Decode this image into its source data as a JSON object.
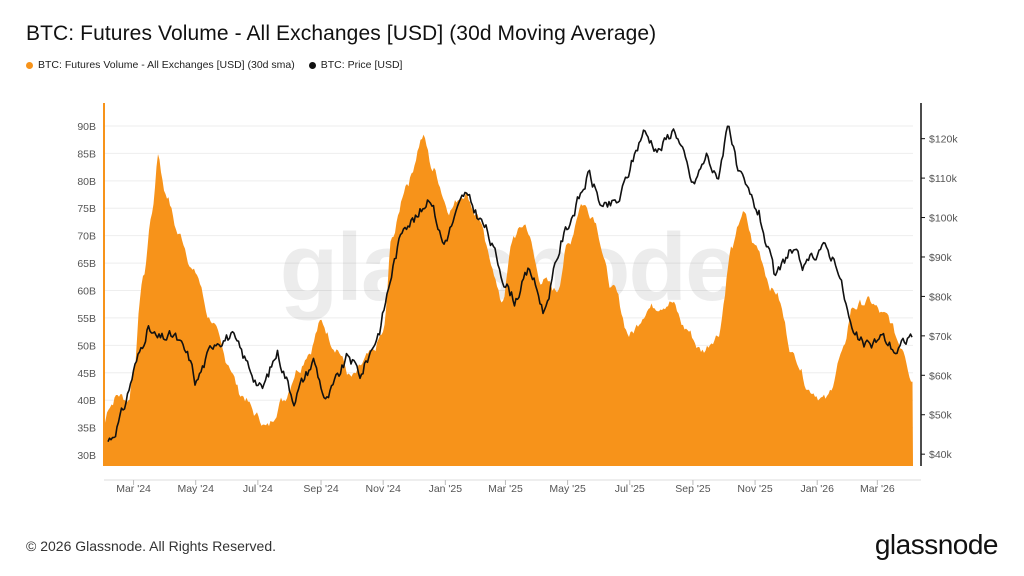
{
  "header": {
    "title": "BTC: Futures Volume - All Exchanges [USD] (30d Moving Average)"
  },
  "legend": [
    {
      "label": "BTC: Futures Volume - All Exchanges [USD] (30d sma)",
      "color": "#f7931a"
    },
    {
      "label": "BTC: Price [USD]",
      "color": "#111111"
    }
  ],
  "watermark": "glassnode",
  "footer": {
    "copyright": "© 2026 Glassnode. All Rights Reserved.",
    "brand": "glassnode"
  },
  "chart_data": {
    "type": "area",
    "x_axis": {
      "ticks": [
        "Mar '24",
        "May '24",
        "Jul '24",
        "Sep '24",
        "Nov '24",
        "Jan '25",
        "Mar '25",
        "May '25",
        "Jul '25",
        "Sep '25",
        "Nov '25",
        "Jan '26",
        "Mar '26"
      ],
      "range": [
        "2024-02-01",
        "2026-04-05"
      ]
    },
    "y_left": {
      "ticks": [
        "30B",
        "35B",
        "40B",
        "45B",
        "50B",
        "55B",
        "60B",
        "65B",
        "70B",
        "75B",
        "80B",
        "85B",
        "90B"
      ],
      "range_billion_usd": [
        28,
        92
      ]
    },
    "y_right": {
      "ticks": [
        "$40k",
        "$50k",
        "$60k",
        "$70k",
        "$80k",
        "$90k",
        "$100k",
        "$110k",
        "$120k"
      ],
      "range_usd": [
        37000,
        126000
      ]
    },
    "series": [
      {
        "name": "BTC: Futures Volume - All Exchanges [USD] (30d sma)",
        "kind": "area",
        "color": "#f7931a",
        "unit": "billion USD",
        "points": [
          [
            "2024-02-01",
            35
          ],
          [
            "2024-02-05",
            39
          ],
          [
            "2024-02-15",
            41
          ],
          [
            "2024-02-25",
            40
          ],
          [
            "2024-03-01",
            46
          ],
          [
            "2024-03-10",
            62
          ],
          [
            "2024-03-20",
            75
          ],
          [
            "2024-03-25",
            85
          ],
          [
            "2024-04-01",
            78
          ],
          [
            "2024-04-15",
            70
          ],
          [
            "2024-05-01",
            63
          ],
          [
            "2024-05-15",
            55
          ],
          [
            "2024-06-01",
            47
          ],
          [
            "2024-06-15",
            41
          ],
          [
            "2024-07-01",
            37
          ],
          [
            "2024-07-10",
            35
          ],
          [
            "2024-07-25",
            40
          ],
          [
            "2024-08-10",
            46
          ],
          [
            "2024-08-20",
            49
          ],
          [
            "2024-09-01",
            54
          ],
          [
            "2024-09-15",
            50
          ],
          [
            "2024-10-01",
            44
          ],
          [
            "2024-10-20",
            48
          ],
          [
            "2024-11-01",
            52
          ],
          [
            "2024-11-10",
            70
          ],
          [
            "2024-11-25",
            80
          ],
          [
            "2024-12-10",
            88
          ],
          [
            "2024-12-20",
            82
          ],
          [
            "2025-01-05",
            75
          ],
          [
            "2025-01-20",
            78
          ],
          [
            "2025-02-01",
            74
          ],
          [
            "2025-02-15",
            65
          ],
          [
            "2025-02-25",
            58
          ],
          [
            "2025-03-10",
            70
          ],
          [
            "2025-03-20",
            72
          ],
          [
            "2025-04-05",
            62
          ],
          [
            "2025-04-20",
            60
          ],
          [
            "2025-05-01",
            68
          ],
          [
            "2025-05-15",
            76
          ],
          [
            "2025-05-25",
            74
          ],
          [
            "2025-06-15",
            60
          ],
          [
            "2025-07-01",
            52
          ],
          [
            "2025-07-20",
            57
          ],
          [
            "2025-08-10",
            58
          ],
          [
            "2025-08-25",
            53
          ],
          [
            "2025-09-10",
            49
          ],
          [
            "2025-09-25",
            52
          ],
          [
            "2025-10-10",
            68
          ],
          [
            "2025-10-20",
            74
          ],
          [
            "2025-11-01",
            68
          ],
          [
            "2025-11-20",
            60
          ],
          [
            "2025-12-10",
            48
          ],
          [
            "2025-12-25",
            42
          ],
          [
            "2026-01-10",
            40
          ],
          [
            "2026-01-25",
            48
          ],
          [
            "2026-02-05",
            57
          ],
          [
            "2026-02-20",
            58
          ],
          [
            "2026-03-10",
            55
          ],
          [
            "2026-03-25",
            50
          ],
          [
            "2026-04-05",
            44
          ]
        ]
      },
      {
        "name": "BTC: Price [USD]",
        "kind": "line",
        "color": "#111111",
        "unit": "USD",
        "points": [
          [
            "2024-02-01",
            42000
          ],
          [
            "2024-02-10",
            45000
          ],
          [
            "2024-02-20",
            51000
          ],
          [
            "2024-03-01",
            61000
          ],
          [
            "2024-03-10",
            68000
          ],
          [
            "2024-03-14",
            72000
          ],
          [
            "2024-03-25",
            69000
          ],
          [
            "2024-04-10",
            70000
          ],
          [
            "2024-04-25",
            64000
          ],
          [
            "2024-05-01",
            58000
          ],
          [
            "2024-05-20",
            69000
          ],
          [
            "2024-06-05",
            70000
          ],
          [
            "2024-06-25",
            61000
          ],
          [
            "2024-07-05",
            56000
          ],
          [
            "2024-07-20",
            66000
          ],
          [
            "2024-08-05",
            54000
          ],
          [
            "2024-08-25",
            64000
          ],
          [
            "2024-09-06",
            53000
          ],
          [
            "2024-09-28",
            65000
          ],
          [
            "2024-10-10",
            60000
          ],
          [
            "2024-10-29",
            72000
          ],
          [
            "2024-11-11",
            88000
          ],
          [
            "2024-11-22",
            99000
          ],
          [
            "2024-12-05",
            100000
          ],
          [
            "2024-12-17",
            106000
          ],
          [
            "2024-12-30",
            93000
          ],
          [
            "2025-01-20",
            106000
          ],
          [
            "2025-02-10",
            97000
          ],
          [
            "2025-02-28",
            84000
          ],
          [
            "2025-03-10",
            79000
          ],
          [
            "2025-03-25",
            87000
          ],
          [
            "2025-04-08",
            76000
          ],
          [
            "2025-04-25",
            94000
          ],
          [
            "2025-05-22",
            111000
          ],
          [
            "2025-06-05",
            102000
          ],
          [
            "2025-06-20",
            104000
          ],
          [
            "2025-07-14",
            122000
          ],
          [
            "2025-07-30",
            117000
          ],
          [
            "2025-08-14",
            123000
          ],
          [
            "2025-09-01",
            108000
          ],
          [
            "2025-09-15",
            116000
          ],
          [
            "2025-09-25",
            109000
          ],
          [
            "2025-10-06",
            125000
          ],
          [
            "2025-10-15",
            111000
          ],
          [
            "2025-11-05",
            101000
          ],
          [
            "2025-11-21",
            84000
          ],
          [
            "2025-12-05",
            92000
          ],
          [
            "2025-12-20",
            87000
          ],
          [
            "2026-01-05",
            93000
          ],
          [
            "2026-01-20",
            89000
          ],
          [
            "2026-02-05",
            70000
          ],
          [
            "2026-02-20",
            67000
          ],
          [
            "2026-03-05",
            70000
          ],
          [
            "2026-03-20",
            66000
          ],
          [
            "2026-04-05",
            71000
          ]
        ]
      }
    ],
    "grid": true,
    "legend_position": "top-left"
  }
}
